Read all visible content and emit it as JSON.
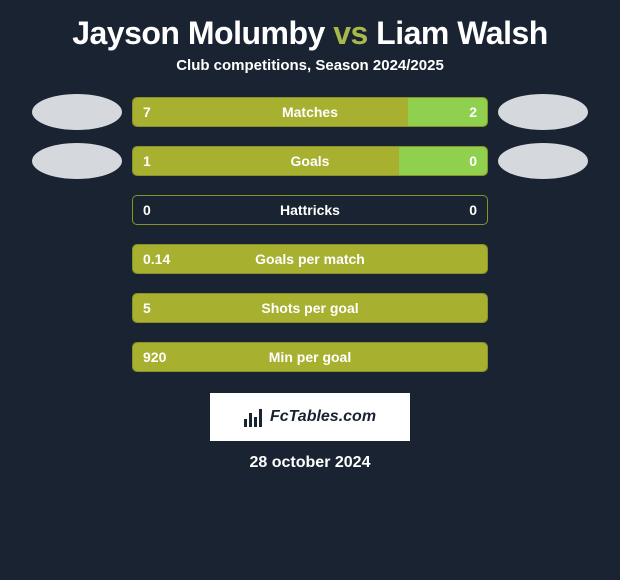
{
  "title": {
    "player1": "Jayson Molumby",
    "vs": "vs",
    "player2": "Liam Walsh"
  },
  "subtitle": "Club competitions, Season 2024/2025",
  "colors": {
    "background": "#1a2332",
    "bar_left": "#a8b030",
    "bar_right": "#8fd14f",
    "bar_border": "#8a9128",
    "text": "#ffffff",
    "bubble": "#d5d8dc",
    "title_accent": "#a8b84a"
  },
  "rows": [
    {
      "label": "Matches",
      "left_value": "7",
      "right_value": "2",
      "left_width_pct": 77.8,
      "right_width_pct": 22.2,
      "show_bubbles": true
    },
    {
      "label": "Goals",
      "left_value": "1",
      "right_value": "0",
      "left_width_pct": 75,
      "right_width_pct": 25,
      "show_bubbles": true
    },
    {
      "label": "Hattricks",
      "left_value": "0",
      "right_value": "0",
      "left_width_pct": 0,
      "right_width_pct": 0,
      "show_bubbles": false
    },
    {
      "label": "Goals per match",
      "left_value": "0.14",
      "right_value": "",
      "left_width_pct": 100,
      "right_width_pct": 0,
      "show_bubbles": false
    },
    {
      "label": "Shots per goal",
      "left_value": "5",
      "right_value": "",
      "left_width_pct": 100,
      "right_width_pct": 0,
      "show_bubbles": false
    },
    {
      "label": "Min per goal",
      "left_value": "920",
      "right_value": "",
      "left_width_pct": 100,
      "right_width_pct": 0,
      "show_bubbles": false
    }
  ],
  "footer": {
    "brand": "FcTables.com",
    "date": "28 october 2024"
  }
}
